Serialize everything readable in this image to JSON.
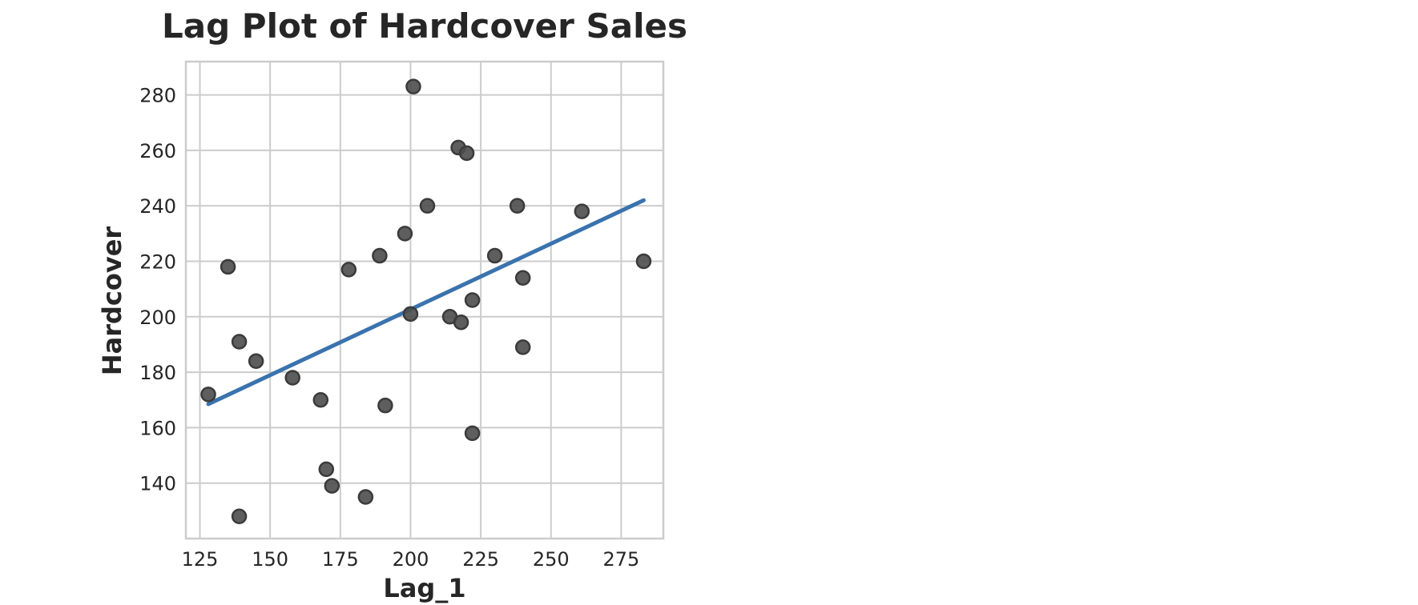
{
  "chart_data": {
    "type": "scatter",
    "title": "Lag Plot of Hardcover Sales",
    "xlabel": "Lag_1",
    "ylabel": "Hardcover",
    "xlim": [
      120,
      290
    ],
    "ylim": [
      120,
      292
    ],
    "xticks": [
      125,
      150,
      175,
      200,
      225,
      250,
      275
    ],
    "yticks": [
      140,
      160,
      180,
      200,
      220,
      240,
      260,
      280
    ],
    "grid": true,
    "points": [
      {
        "x": 128,
        "y": 172
      },
      {
        "x": 135,
        "y": 218
      },
      {
        "x": 139,
        "y": 191
      },
      {
        "x": 139,
        "y": 128
      },
      {
        "x": 145,
        "y": 184
      },
      {
        "x": 158,
        "y": 178
      },
      {
        "x": 168,
        "y": 170
      },
      {
        "x": 170,
        "y": 145
      },
      {
        "x": 172,
        "y": 139
      },
      {
        "x": 178,
        "y": 217
      },
      {
        "x": 184,
        "y": 135
      },
      {
        "x": 189,
        "y": 222
      },
      {
        "x": 191,
        "y": 168
      },
      {
        "x": 198,
        "y": 230
      },
      {
        "x": 200,
        "y": 201
      },
      {
        "x": 201,
        "y": 283
      },
      {
        "x": 206,
        "y": 240
      },
      {
        "x": 214,
        "y": 200
      },
      {
        "x": 217,
        "y": 261
      },
      {
        "x": 218,
        "y": 198
      },
      {
        "x": 220,
        "y": 259
      },
      {
        "x": 222,
        "y": 206
      },
      {
        "x": 222,
        "y": 158
      },
      {
        "x": 230,
        "y": 222
      },
      {
        "x": 238,
        "y": 240
      },
      {
        "x": 240,
        "y": 214
      },
      {
        "x": 240,
        "y": 189
      },
      {
        "x": 261,
        "y": 238
      },
      {
        "x": 283,
        "y": 220
      }
    ],
    "fit_line": {
      "x": [
        128,
        283
      ],
      "y": [
        168.5,
        242
      ]
    },
    "colors": {
      "points": "#4d4d4d",
      "fit_line": "#3a73ae",
      "grid": "#cccccc",
      "text": "#262626"
    }
  }
}
